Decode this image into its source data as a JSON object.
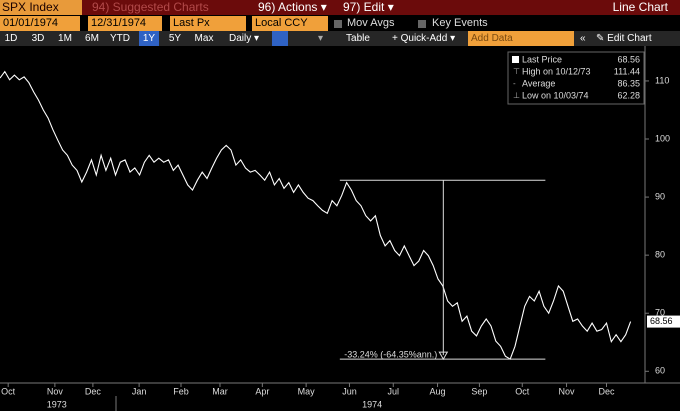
{
  "toolbar": {
    "row1": {
      "security": "SPX Index",
      "suggested": "94) Suggested Charts",
      "actions": "96) Actions ▾",
      "edit": "97) Edit ▾",
      "view": "Line Chart"
    },
    "row2": {
      "start_date": "01/01/1974",
      "end_date": "12/31/1974",
      "field": "Last Px",
      "currency": "Local CCY",
      "mov_avgs": "Mov Avgs",
      "key_events": "Key Events"
    },
    "row3": {
      "periods": [
        "1D",
        "3D",
        "1M",
        "6M",
        "YTD",
        "1Y",
        "5Y",
        "Max"
      ],
      "frequency": "Daily ▾",
      "table": "Table",
      "quick_add": "+ Quick-Add ▾",
      "add_data": "Add Data",
      "collapse": "«",
      "edit_chart": "✎ Edit Chart"
    }
  },
  "chart_data": {
    "type": "line",
    "series": [
      {
        "name": "Last Price",
        "color": "#ffffff",
        "values": [
          110.5,
          111.6,
          110.2,
          111.0,
          110.2,
          110.7,
          109.7,
          108.1,
          106.7,
          105.0,
          103.6,
          101.6,
          99.8,
          98.1,
          97.2,
          95.5,
          94.6,
          92.6,
          94.3,
          96.4,
          93.8,
          97.2,
          94.6,
          96.7,
          93.8,
          96.0,
          96.4,
          94.3,
          95.0,
          93.8,
          96.0,
          97.2,
          96.0,
          96.7,
          96.0,
          96.4,
          94.6,
          95.5,
          93.8,
          92.1,
          91.2,
          92.9,
          94.3,
          93.2,
          95.0,
          96.7,
          98.1,
          98.9,
          98.1,
          95.5,
          96.4,
          95.0,
          94.3,
          94.6,
          93.8,
          92.9,
          94.3,
          92.1,
          93.2,
          91.5,
          92.5,
          90.8,
          92.1,
          90.8,
          89.8,
          89.4,
          88.5,
          87.7,
          87.2,
          89.4,
          88.5,
          90.3,
          92.5,
          91.2,
          89.4,
          88.5,
          86.8,
          85.9,
          86.8,
          83.4,
          81.6,
          82.5,
          80.8,
          79.9,
          81.6,
          79.9,
          78.2,
          79.0,
          80.8,
          79.9,
          78.2,
          75.9,
          74.7,
          72.1,
          71.2,
          71.8,
          68.6,
          69.5,
          66.9,
          66.1,
          67.8,
          69.0,
          67.8,
          65.2,
          64.3,
          62.6,
          62.1,
          64.3,
          67.8,
          71.2,
          72.9,
          72.1,
          73.8,
          71.2,
          70.0,
          72.1,
          74.7,
          73.8,
          71.2,
          68.6,
          69.0,
          67.8,
          66.9,
          68.3,
          66.9,
          67.2,
          68.3,
          65.1,
          66.3,
          65.1,
          66.3,
          68.56
        ]
      }
    ],
    "xlim": [
      0,
      134
    ],
    "xticks": [
      {
        "value": 1.7,
        "label": "Oct"
      },
      {
        "value": 11.4,
        "label": "Nov"
      },
      {
        "value": 19.3,
        "label": "Dec"
      },
      {
        "value": 28.9,
        "label": "Jan"
      },
      {
        "value": 37.6,
        "label": "Feb"
      },
      {
        "value": 45.7,
        "label": "Mar"
      },
      {
        "value": 54.5,
        "label": "Apr"
      },
      {
        "value": 63.6,
        "label": "May"
      },
      {
        "value": 72.6,
        "label": "Jun"
      },
      {
        "value": 81.7,
        "label": "Jul"
      },
      {
        "value": 90.9,
        "label": "Aug"
      },
      {
        "value": 99.6,
        "label": "Sep"
      },
      {
        "value": 108.5,
        "label": "Oct"
      },
      {
        "value": 117.7,
        "label": "Nov"
      },
      {
        "value": 126,
        "label": "Dec"
      }
    ],
    "year_labels": [
      {
        "value": 11.8,
        "label": "1973"
      },
      {
        "value": 77.3,
        "label": "1974"
      }
    ],
    "ylim": [
      58.5,
      115.5
    ],
    "yticks": [
      60,
      70,
      80,
      90,
      100,
      110
    ],
    "stats": [
      {
        "label": "Last Price",
        "value": 68.56
      },
      {
        "label": "High on 10/12/73",
        "value": 111.44
      },
      {
        "label": "Average",
        "value": 86.35
      },
      {
        "label": "Low on 10/03/74",
        "value": 62.28
      }
    ],
    "drawdown": {
      "text": "-33.24% (-64.35%ann.)",
      "high": 92.9,
      "low": 62.1,
      "x_start": 70.6,
      "x_end": 113.3,
      "x_marker": 92.1
    }
  }
}
